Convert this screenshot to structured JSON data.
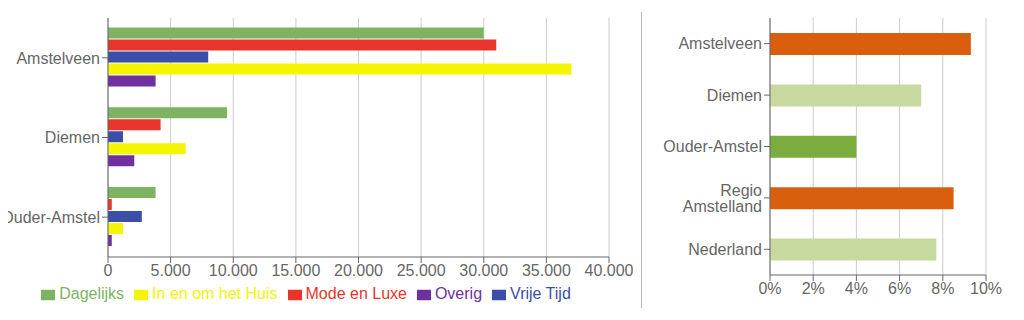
{
  "chart_data": [
    {
      "type": "bar",
      "orientation": "horizontal",
      "categories": [
        "Amstelveen",
        "Diemen",
        "Ouder-Amstel"
      ],
      "series": [
        {
          "name": "Dagelijks",
          "color": "#7db361",
          "values": [
            30000,
            9500,
            3800
          ]
        },
        {
          "name": "Mode en Luxe",
          "color": "#e8342a",
          "values": [
            31000,
            4200,
            300
          ]
        },
        {
          "name": "Vrije Tijd",
          "color": "#3b4fa8",
          "values": [
            8000,
            1200,
            2700
          ]
        },
        {
          "name": "In en om het Huis",
          "color": "#f5f500",
          "values": [
            37000,
            6200,
            1200
          ]
        },
        {
          "name": "Overig",
          "color": "#7030a0",
          "values": [
            3800,
            2100,
            300
          ]
        }
      ],
      "xlim": [
        0,
        40000
      ],
      "xticks": [
        0,
        {
          "value": 5000,
          "label": "5.000"
        },
        {
          "value": 10000,
          "label": "10.000"
        },
        {
          "value": 15000,
          "label": "15.000"
        },
        {
          "value": 20000,
          "label": "20.000"
        },
        {
          "value": 25000,
          "label": "25.000"
        },
        {
          "value": 30000,
          "label": "30.000"
        },
        {
          "value": 35000,
          "label": "35.000"
        },
        {
          "value": 40000,
          "label": "40.000"
        }
      ],
      "grid": true,
      "legend": "bottom"
    },
    {
      "type": "bar",
      "orientation": "horizontal",
      "categories": [
        "Amstelveen",
        "Diemen",
        "Ouder-Amstel",
        "Regio Amstelland",
        "Nederland"
      ],
      "values": [
        0.093,
        0.07,
        0.04,
        0.085,
        0.077
      ],
      "colors": [
        "#d95f0e",
        "#c8d9a0",
        "#7aad3e",
        "#d95f0e",
        "#c8d9a0"
      ],
      "xlim": [
        0,
        0.1
      ],
      "xticks": [
        {
          "value": 0,
          "label": "0%"
        },
        {
          "value": 0.02,
          "label": "2%"
        },
        {
          "value": 0.04,
          "label": "4%"
        },
        {
          "value": 0.06,
          "label": "6%"
        },
        {
          "value": 0.08,
          "label": "8%"
        },
        {
          "value": 0.1,
          "label": "10%"
        }
      ],
      "grid": true
    }
  ]
}
